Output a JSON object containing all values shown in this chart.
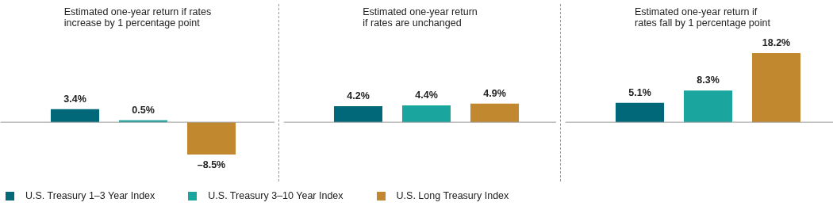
{
  "chart_data": [
    {
      "type": "bar",
      "title": "Estimated one-year return if rates\nincrease by 1 percentage point",
      "categories": [
        null
      ],
      "legend": "bottom",
      "series": [
        {
          "name": "U.S. Treasury 1–3 Year Index",
          "color": "#006878",
          "values": [
            3.4
          ],
          "value_labels": [
            "3.4%"
          ]
        },
        {
          "name": "U.S. Treasury 3–10 Year Index",
          "color": "#1aa59f",
          "values": [
            0.5
          ],
          "value_labels": [
            "0.5%"
          ]
        },
        {
          "name": "U.S. Long Treasury Index",
          "color": "#c1882f",
          "values": [
            -8.5
          ],
          "value_labels": [
            "–8.5%"
          ]
        }
      ]
    },
    {
      "type": "bar",
      "title": "Estimated one-year return\nif rates are unchanged",
      "categories": [
        null
      ],
      "series": [
        {
          "color": "#006878",
          "values": [
            4.2
          ],
          "value_labels": [
            "4.2%"
          ]
        },
        {
          "color": "#1aa59f",
          "values": [
            4.4
          ],
          "value_labels": [
            "4.4%"
          ]
        },
        {
          "color": "#c1882f",
          "values": [
            4.9
          ],
          "value_labels": [
            "4.9%"
          ]
        }
      ]
    },
    {
      "type": "bar",
      "title": "Estimated one-year return if\nrates fall by 1 percentage point",
      "categories": [
        null
      ],
      "series": [
        {
          "color": "#006878",
          "values": [
            5.1
          ],
          "value_labels": [
            "5.1%"
          ]
        },
        {
          "color": "#1aa59f",
          "values": [
            8.3
          ],
          "value_labels": [
            "8.3%"
          ]
        },
        {
          "color": "#c1882f",
          "values": [
            18.2
          ],
          "value_labels": [
            "18.2%"
          ]
        }
      ]
    }
  ]
}
